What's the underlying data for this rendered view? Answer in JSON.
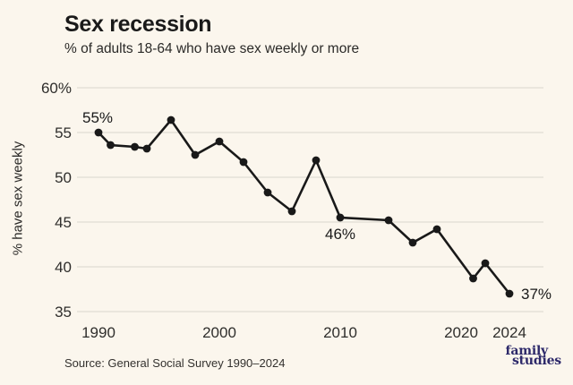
{
  "header": {
    "title": "Sex recession",
    "subtitle": "% of adults 18-64 who have sex weekly or more"
  },
  "footer": {
    "source": "Source: General Social Survey 1990–2024",
    "logo_line1": "family",
    "logo_line2": "studies"
  },
  "colors": {
    "background": "#fbf6ed",
    "line": "#191919",
    "point": "#191919",
    "grid": "#e4e0d8",
    "axis_text": "#2f2e2c",
    "annotation_text": "#191919",
    "logo_navy": "#2d296a"
  },
  "chart_data": {
    "type": "line",
    "title": "Sex recession",
    "subtitle": "% of adults 18-64 who have sex weekly or more",
    "xlabel": "",
    "ylabel": "% have sex weekly",
    "x": [
      1990,
      1991,
      1993,
      1994,
      1996,
      1998,
      2000,
      2002,
      2004,
      2006,
      2008,
      2010,
      2014,
      2016,
      2018,
      2021,
      2022,
      2024
    ],
    "y": [
      55,
      53.6,
      53.4,
      53.2,
      56.4,
      52.5,
      54,
      51.7,
      48.3,
      46.2,
      51.9,
      45.5,
      45.2,
      42.7,
      44.2,
      38.7,
      40.4,
      37
    ],
    "ylim": [
      35,
      60
    ],
    "xlim": [
      1988,
      2026
    ],
    "grid": true,
    "legend": false,
    "yticks": [
      {
        "v": 60,
        "label": "60%"
      },
      {
        "v": 55,
        "label": "55"
      },
      {
        "v": 50,
        "label": "50"
      },
      {
        "v": 45,
        "label": "45"
      },
      {
        "v": 40,
        "label": "40"
      },
      {
        "v": 35,
        "label": "35"
      }
    ],
    "xticks": [
      {
        "v": 1990,
        "label": "1990"
      },
      {
        "v": 2000,
        "label": "2000"
      },
      {
        "v": 2010,
        "label": "2010"
      },
      {
        "v": 2020,
        "label": "2020"
      },
      {
        "v": 2024,
        "label": "2024"
      }
    ],
    "annotations": [
      {
        "text": "55%",
        "year": 1990,
        "position": "above"
      },
      {
        "text": "46%",
        "year": 2010,
        "position": "below"
      },
      {
        "text": "37%",
        "year": 2024,
        "position": "right"
      }
    ]
  }
}
